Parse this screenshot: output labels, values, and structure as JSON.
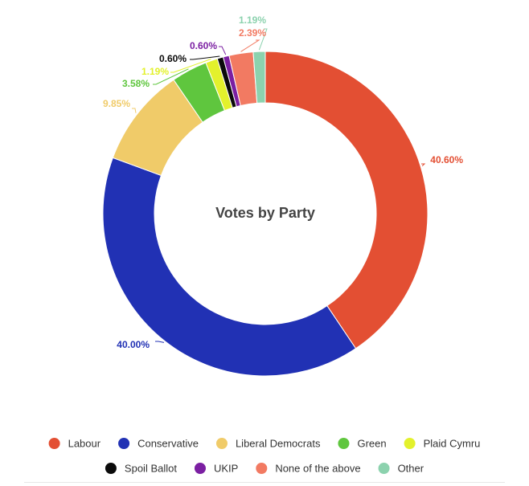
{
  "chart_data": {
    "type": "pie",
    "title": "Votes by Party",
    "categories": [
      "Labour",
      "Conservative",
      "Liberal Democrats",
      "Green",
      "Plaid Cymru",
      "Spoil Ballot",
      "UKIP",
      "None of the above",
      "Other"
    ],
    "values": [
      40.6,
      40.0,
      9.85,
      3.58,
      1.19,
      0.6,
      0.6,
      2.39,
      1.19
    ],
    "value_labels": [
      "40.60%",
      "40.00%",
      "9.85%",
      "3.58%",
      "1.19%",
      "0.60%",
      "0.60%",
      "2.39%",
      "1.19%"
    ],
    "colors": [
      "#E34F33",
      "#2131B4",
      "#F0CB69",
      "#5FC63E",
      "#E3F12C",
      "#0B0B0B",
      "#7B1FA2",
      "#F27A62",
      "#8CD2AE"
    ],
    "donut": true,
    "legend_position": "bottom"
  }
}
